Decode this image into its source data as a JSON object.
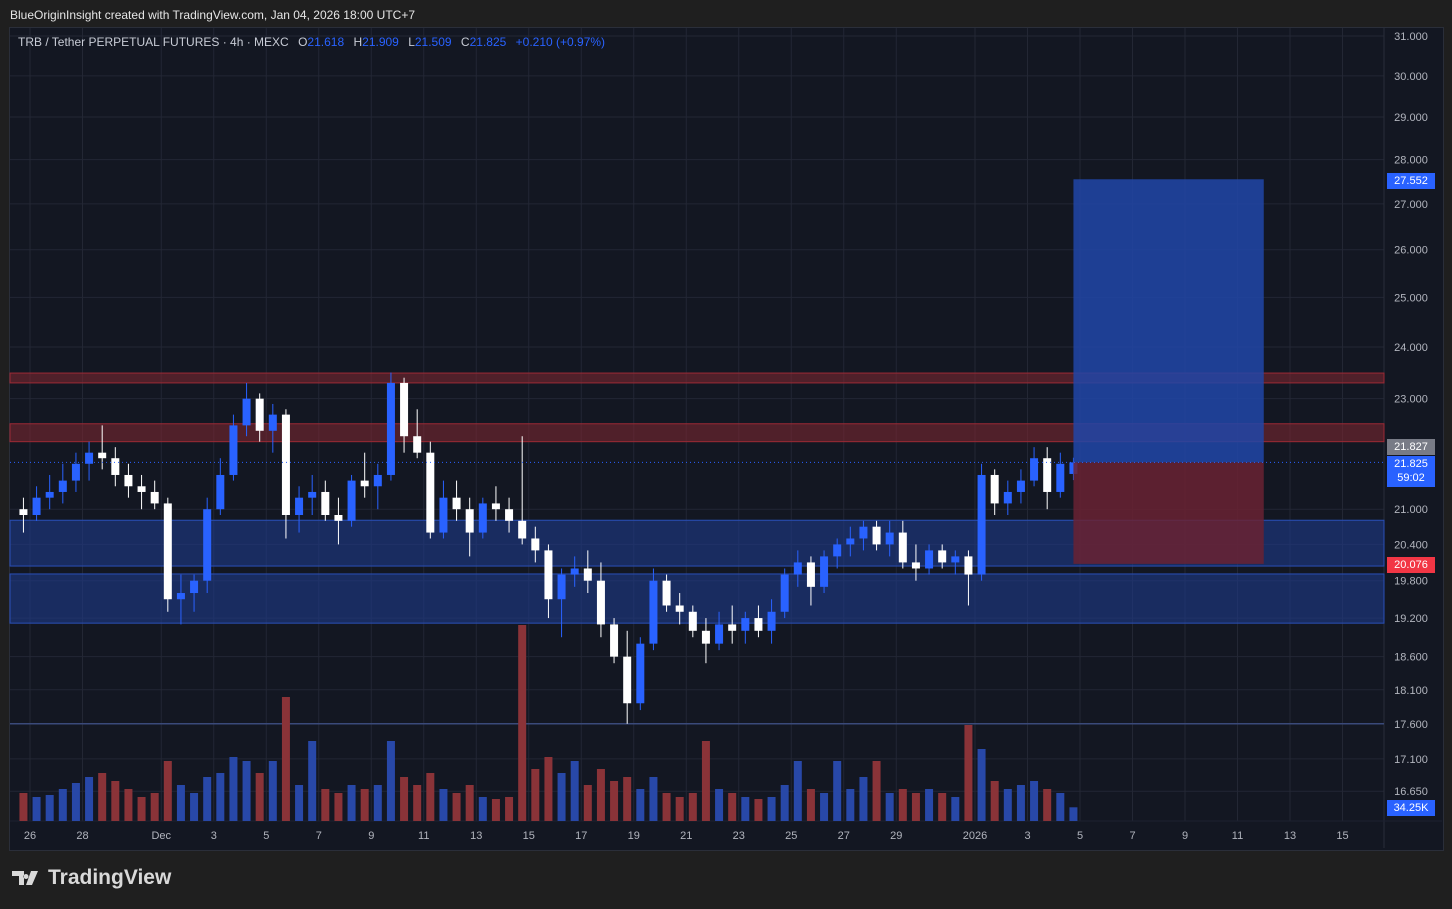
{
  "header": {
    "attribution": "BlueOriginInsight created with TradingView.com, Jan 04, 2026 18:00 UTC+7"
  },
  "legend": {
    "symbol": "TRB / Tether PERPETUAL FUTURES · 4h · MEXC",
    "o_label": "O",
    "o": "21.618",
    "h_label": "H",
    "h": "21.909",
    "l_label": "L",
    "l": "21.509",
    "c_label": "C",
    "c": "21.825",
    "change": "+0.210 (+0.97%)"
  },
  "axis_tags": {
    "target": "27.552",
    "prev": "21.827",
    "last": "21.825",
    "countdown": "59:02",
    "stop": "20.076",
    "volume": "34.25K"
  },
  "brand": {
    "name": "TradingView"
  },
  "colors": {
    "up": "#2962ff",
    "down": "#ffffff",
    "vol_up": "#2848a8",
    "vol_down": "#8a3338",
    "bg": "#131722",
    "grid": "#232734",
    "resistance": "#7a2630",
    "support": "#1e3a8a",
    "target_zone": "#2146a8",
    "stop_zone": "#6a2233"
  },
  "chart_data": {
    "type": "candlestick",
    "interval": "4h",
    "y_scale": "log",
    "ylim": [
      16.4,
      31.2
    ],
    "grid": true,
    "y_ticks": [
      "31.000",
      "30.000",
      "29.000",
      "28.000",
      "27.000",
      "26.000",
      "25.000",
      "24.000",
      "23.000",
      "21.000",
      "20.400",
      "19.800",
      "19.200",
      "18.600",
      "18.100",
      "17.600",
      "17.100",
      "16.650"
    ],
    "x_ticks": [
      {
        "label": "26",
        "date": "2025-11-26"
      },
      {
        "label": "28",
        "date": "2025-11-28"
      },
      {
        "label": "Dec",
        "date": "2025-12-01"
      },
      {
        "label": "3",
        "date": "2025-12-03"
      },
      {
        "label": "5",
        "date": "2025-12-05"
      },
      {
        "label": "7",
        "date": "2025-12-07"
      },
      {
        "label": "9",
        "date": "2025-12-09"
      },
      {
        "label": "11",
        "date": "2025-12-11"
      },
      {
        "label": "13",
        "date": "2025-12-13"
      },
      {
        "label": "15",
        "date": "2025-12-15"
      },
      {
        "label": "17",
        "date": "2025-12-17"
      },
      {
        "label": "19",
        "date": "2025-12-19"
      },
      {
        "label": "21",
        "date": "2025-12-21"
      },
      {
        "label": "23",
        "date": "2025-12-23"
      },
      {
        "label": "25",
        "date": "2025-12-25"
      },
      {
        "label": "27",
        "date": "2025-12-27"
      },
      {
        "label": "29",
        "date": "2025-12-29"
      },
      {
        "label": "2026",
        "date": "2026-01-01"
      },
      {
        "label": "3",
        "date": "2026-01-03"
      },
      {
        "label": "5",
        "date": "2026-01-05"
      },
      {
        "label": "7",
        "date": "2026-01-07"
      },
      {
        "label": "9",
        "date": "2026-01-09"
      },
      {
        "label": "11",
        "date": "2026-01-11"
      },
      {
        "label": "13",
        "date": "2026-01-13"
      },
      {
        "label": "15",
        "date": "2026-01-15"
      }
    ],
    "zones": [
      {
        "kind": "resistance",
        "from": 23.3,
        "to": 23.49
      },
      {
        "kind": "resistance",
        "from": 22.2,
        "to": 22.53
      },
      {
        "kind": "support",
        "from": 20.04,
        "to": 20.81
      },
      {
        "kind": "support",
        "from": 19.12,
        "to": 19.91
      }
    ],
    "hline": 17.6,
    "last_price": 21.825,
    "long_position": {
      "entry": 21.825,
      "target": 27.552,
      "stop": 20.076,
      "start": "2026-01-04 18:00",
      "end": "2026-01-12 00:00"
    },
    "candles_start": "2025-11-25 12:00",
    "candle_step_hours": 12,
    "candles": [
      [
        21.0,
        21.2,
        20.6,
        20.9,
        70
      ],
      [
        20.9,
        21.4,
        20.8,
        21.2,
        60
      ],
      [
        21.2,
        21.6,
        21.0,
        21.3,
        65
      ],
      [
        21.3,
        21.8,
        21.1,
        21.5,
        80
      ],
      [
        21.5,
        22.0,
        21.3,
        21.8,
        95
      ],
      [
        21.8,
        22.2,
        21.5,
        22.0,
        110
      ],
      [
        22.0,
        22.5,
        21.7,
        21.9,
        120
      ],
      [
        21.9,
        22.1,
        21.4,
        21.6,
        100
      ],
      [
        21.6,
        21.8,
        21.2,
        21.4,
        80
      ],
      [
        21.4,
        21.6,
        21.0,
        21.3,
        60
      ],
      [
        21.3,
        21.5,
        21.0,
        21.1,
        70
      ],
      [
        21.1,
        21.2,
        19.3,
        19.5,
        150
      ],
      [
        19.5,
        19.9,
        19.1,
        19.6,
        90
      ],
      [
        19.6,
        19.9,
        19.3,
        19.8,
        70
      ],
      [
        19.8,
        21.2,
        19.6,
        21.0,
        110
      ],
      [
        21.0,
        21.9,
        20.9,
        21.6,
        120
      ],
      [
        21.6,
        22.7,
        21.5,
        22.5,
        160
      ],
      [
        22.5,
        23.3,
        22.3,
        23.0,
        150
      ],
      [
        23.0,
        23.1,
        22.2,
        22.4,
        120
      ],
      [
        22.4,
        22.9,
        22.0,
        22.7,
        150
      ],
      [
        22.7,
        22.8,
        20.5,
        20.9,
        310
      ],
      [
        20.9,
        21.4,
        20.6,
        21.2,
        90
      ],
      [
        21.2,
        21.6,
        20.9,
        21.3,
        200
      ],
      [
        21.3,
        21.5,
        20.8,
        20.9,
        80
      ],
      [
        20.9,
        21.2,
        20.4,
        20.8,
        70
      ],
      [
        20.8,
        21.6,
        20.7,
        21.5,
        90
      ],
      [
        21.5,
        22.0,
        21.2,
        21.4,
        80
      ],
      [
        21.4,
        21.8,
        21.0,
        21.6,
        90
      ],
      [
        21.6,
        23.5,
        21.5,
        23.3,
        200
      ],
      [
        23.3,
        23.4,
        22.0,
        22.3,
        110
      ],
      [
        22.3,
        22.8,
        21.9,
        22.0,
        90
      ],
      [
        22.0,
        22.2,
        20.5,
        20.6,
        120
      ],
      [
        20.6,
        21.5,
        20.5,
        21.2,
        80
      ],
      [
        21.2,
        21.5,
        20.8,
        21.0,
        70
      ],
      [
        21.0,
        21.2,
        20.2,
        20.6,
        90
      ],
      [
        20.6,
        21.2,
        20.5,
        21.1,
        60
      ],
      [
        21.1,
        21.4,
        20.8,
        21.0,
        55
      ],
      [
        21.0,
        21.2,
        20.6,
        20.8,
        60
      ],
      [
        20.8,
        22.3,
        20.4,
        20.5,
        490
      ],
      [
        20.5,
        20.7,
        20.1,
        20.3,
        130
      ],
      [
        20.3,
        20.4,
        19.2,
        19.5,
        160
      ],
      [
        19.5,
        20.0,
        18.9,
        19.9,
        120
      ],
      [
        19.9,
        20.2,
        19.7,
        20.0,
        150
      ],
      [
        20.0,
        20.3,
        19.6,
        19.8,
        90
      ],
      [
        19.8,
        20.1,
        18.9,
        19.1,
        130
      ],
      [
        19.1,
        19.2,
        18.5,
        18.6,
        100
      ],
      [
        18.6,
        19.0,
        17.6,
        17.9,
        110
      ],
      [
        17.9,
        18.9,
        17.8,
        18.8,
        80
      ],
      [
        18.8,
        20.0,
        18.7,
        19.8,
        110
      ],
      [
        19.8,
        19.9,
        19.3,
        19.4,
        70
      ],
      [
        19.4,
        19.6,
        19.1,
        19.3,
        60
      ],
      [
        19.3,
        19.4,
        18.9,
        19.0,
        70
      ],
      [
        19.0,
        19.2,
        18.5,
        18.8,
        200
      ],
      [
        18.8,
        19.3,
        18.7,
        19.1,
        80
      ],
      [
        19.1,
        19.4,
        18.8,
        19.0,
        70
      ],
      [
        19.0,
        19.3,
        18.8,
        19.2,
        60
      ],
      [
        19.2,
        19.4,
        18.9,
        19.0,
        55
      ],
      [
        19.0,
        19.5,
        18.8,
        19.3,
        60
      ],
      [
        19.3,
        20.0,
        19.2,
        19.9,
        90
      ],
      [
        19.9,
        20.3,
        19.7,
        20.1,
        150
      ],
      [
        20.1,
        20.2,
        19.4,
        19.7,
        80
      ],
      [
        19.7,
        20.3,
        19.6,
        20.2,
        70
      ],
      [
        20.2,
        20.5,
        20.0,
        20.4,
        150
      ],
      [
        20.4,
        20.7,
        20.2,
        20.5,
        80
      ],
      [
        20.5,
        20.8,
        20.3,
        20.7,
        110
      ],
      [
        20.7,
        20.8,
        20.3,
        20.4,
        150
      ],
      [
        20.4,
        20.8,
        20.2,
        20.6,
        70
      ],
      [
        20.6,
        20.8,
        20.0,
        20.1,
        80
      ],
      [
        20.1,
        20.4,
        19.8,
        20.0,
        70
      ],
      [
        20.0,
        20.4,
        19.9,
        20.3,
        80
      ],
      [
        20.3,
        20.4,
        20.0,
        20.1,
        70
      ],
      [
        20.1,
        20.3,
        19.9,
        20.2,
        60
      ],
      [
        20.2,
        20.3,
        19.4,
        19.9,
        240
      ],
      [
        19.9,
        21.8,
        19.8,
        21.6,
        180
      ],
      [
        21.6,
        21.7,
        20.9,
        21.1,
        100
      ],
      [
        21.1,
        21.5,
        20.9,
        21.3,
        80
      ],
      [
        21.3,
        21.7,
        21.1,
        21.5,
        90
      ],
      [
        21.5,
        22.1,
        21.4,
        21.9,
        100
      ],
      [
        21.9,
        22.1,
        21.0,
        21.3,
        80
      ],
      [
        21.3,
        22.0,
        21.2,
        21.8,
        70
      ],
      [
        21.618,
        21.909,
        21.509,
        21.825,
        34.25
      ]
    ]
  }
}
